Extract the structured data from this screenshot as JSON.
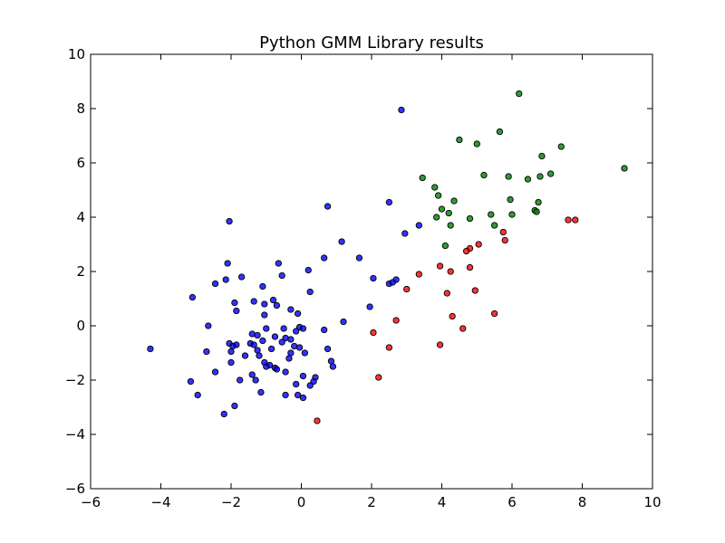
{
  "chart_data": {
    "type": "scatter",
    "title": "Python GMM Library results",
    "xlabel": "",
    "ylabel": "",
    "xlim": [
      -6,
      10
    ],
    "ylim": [
      -6,
      10
    ],
    "xticks": [
      -6,
      -4,
      -2,
      0,
      2,
      4,
      6,
      8,
      10
    ],
    "yticks": [
      -6,
      -4,
      -2,
      0,
      2,
      4,
      6,
      8,
      10
    ],
    "xtick_labels": [
      "−6",
      "−4",
      "−2",
      "0",
      "2",
      "4",
      "6",
      "8",
      "10"
    ],
    "ytick_labels": [
      "−6",
      "−4",
      "−2",
      "0",
      "2",
      "4",
      "6",
      "8",
      "10"
    ],
    "grid": false,
    "legend": false,
    "series": [
      {
        "color": "#0000ff",
        "points": [
          [
            2.85,
            7.95
          ],
          [
            -2.05,
            3.85
          ],
          [
            0.75,
            4.4
          ],
          [
            2.5,
            4.55
          ],
          [
            3.35,
            3.7
          ],
          [
            2.95,
            3.4
          ],
          [
            1.15,
            3.1
          ],
          [
            1.65,
            2.5
          ],
          [
            0.65,
            2.5
          ],
          [
            -2.1,
            2.3
          ],
          [
            -0.65,
            2.3
          ],
          [
            0.2,
            2.05
          ],
          [
            -1.7,
            1.8
          ],
          [
            -0.55,
            1.85
          ],
          [
            -2.15,
            1.7
          ],
          [
            -2.45,
            1.55
          ],
          [
            -1.1,
            1.45
          ],
          [
            2.05,
            1.75
          ],
          [
            2.5,
            1.55
          ],
          [
            2.7,
            1.7
          ],
          [
            2.6,
            1.6
          ],
          [
            0.25,
            1.25
          ],
          [
            -3.1,
            1.05
          ],
          [
            -1.35,
            0.9
          ],
          [
            -0.8,
            0.95
          ],
          [
            -1.9,
            0.85
          ],
          [
            -1.05,
            0.8
          ],
          [
            -0.7,
            0.75
          ],
          [
            -0.3,
            0.6
          ],
          [
            -0.1,
            0.45
          ],
          [
            -1.85,
            0.55
          ],
          [
            -1.05,
            0.4
          ],
          [
            1.95,
            0.7
          ],
          [
            1.2,
            0.15
          ],
          [
            -2.65,
            0.0
          ],
          [
            -0.05,
            -0.05
          ],
          [
            0.05,
            -0.1
          ],
          [
            -1.0,
            -0.1
          ],
          [
            -0.5,
            -0.1
          ],
          [
            -0.15,
            -0.2
          ],
          [
            0.65,
            -0.15
          ],
          [
            -1.4,
            -0.3
          ],
          [
            -1.25,
            -0.35
          ],
          [
            -0.75,
            -0.4
          ],
          [
            -0.45,
            -0.45
          ],
          [
            -0.3,
            -0.5
          ],
          [
            -1.1,
            -0.55
          ],
          [
            -0.55,
            -0.6
          ],
          [
            -1.45,
            -0.65
          ],
          [
            -1.35,
            -0.7
          ],
          [
            -2.05,
            -0.65
          ],
          [
            -1.85,
            -0.7
          ],
          [
            -1.95,
            -0.75
          ],
          [
            -0.2,
            -0.75
          ],
          [
            -0.05,
            -0.8
          ],
          [
            -0.85,
            -0.85
          ],
          [
            -1.25,
            -0.9
          ],
          [
            -2.0,
            -0.95
          ],
          [
            -2.7,
            -0.95
          ],
          [
            0.75,
            -0.85
          ],
          [
            -4.3,
            -0.85
          ],
          [
            0.1,
            -1.0
          ],
          [
            -0.3,
            -1.0
          ],
          [
            -1.6,
            -1.1
          ],
          [
            -1.2,
            -1.1
          ],
          [
            -0.35,
            -1.2
          ],
          [
            0.85,
            -1.3
          ],
          [
            -2.0,
            -1.35
          ],
          [
            -1.05,
            -1.35
          ],
          [
            -0.9,
            -1.45
          ],
          [
            -0.75,
            -1.55
          ],
          [
            -1.0,
            -1.5
          ],
          [
            -0.7,
            -1.6
          ],
          [
            0.9,
            -1.5
          ],
          [
            -2.45,
            -1.7
          ],
          [
            -1.4,
            -1.8
          ],
          [
            -0.45,
            -1.7
          ],
          [
            0.4,
            -1.9
          ],
          [
            0.05,
            -1.85
          ],
          [
            -1.75,
            -2.0
          ],
          [
            -1.3,
            -2.0
          ],
          [
            0.35,
            -2.05
          ],
          [
            -3.15,
            -2.05
          ],
          [
            -0.15,
            -2.15
          ],
          [
            0.25,
            -2.2
          ],
          [
            -1.15,
            -2.45
          ],
          [
            -2.95,
            -2.55
          ],
          [
            -0.45,
            -2.55
          ],
          [
            -0.1,
            -2.55
          ],
          [
            0.05,
            -2.65
          ],
          [
            -1.9,
            -2.95
          ],
          [
            -2.2,
            -3.25
          ]
        ]
      },
      {
        "color": "#008000",
        "points": [
          [
            6.2,
            8.55
          ],
          [
            5.65,
            7.15
          ],
          [
            4.5,
            6.85
          ],
          [
            5.0,
            6.7
          ],
          [
            7.4,
            6.6
          ],
          [
            6.85,
            6.25
          ],
          [
            9.2,
            5.8
          ],
          [
            7.1,
            5.6
          ],
          [
            5.2,
            5.55
          ],
          [
            6.8,
            5.5
          ],
          [
            3.45,
            5.45
          ],
          [
            5.9,
            5.5
          ],
          [
            6.45,
            5.4
          ],
          [
            3.8,
            5.1
          ],
          [
            3.9,
            4.8
          ],
          [
            5.95,
            4.65
          ],
          [
            4.35,
            4.6
          ],
          [
            6.75,
            4.55
          ],
          [
            4.0,
            4.3
          ],
          [
            6.65,
            4.25
          ],
          [
            6.7,
            4.2
          ],
          [
            4.2,
            4.15
          ],
          [
            6.0,
            4.1
          ],
          [
            5.4,
            4.1
          ],
          [
            3.85,
            4.0
          ],
          [
            4.8,
            3.95
          ],
          [
            5.5,
            3.7
          ],
          [
            4.25,
            3.7
          ],
          [
            4.1,
            2.95
          ]
        ]
      },
      {
        "color": "#ff0000",
        "points": [
          [
            7.6,
            3.9
          ],
          [
            7.8,
            3.9
          ],
          [
            5.75,
            3.45
          ],
          [
            5.8,
            3.15
          ],
          [
            5.05,
            3.0
          ],
          [
            4.8,
            2.85
          ],
          [
            4.7,
            2.75
          ],
          [
            3.95,
            2.2
          ],
          [
            4.8,
            2.15
          ],
          [
            4.25,
            2.0
          ],
          [
            3.35,
            1.9
          ],
          [
            3.0,
            1.35
          ],
          [
            4.95,
            1.3
          ],
          [
            4.15,
            1.2
          ],
          [
            5.5,
            0.45
          ],
          [
            4.3,
            0.35
          ],
          [
            2.7,
            0.2
          ],
          [
            4.6,
            -0.1
          ],
          [
            2.05,
            -0.25
          ],
          [
            3.95,
            -0.7
          ],
          [
            2.5,
            -0.8
          ],
          [
            2.2,
            -1.9
          ],
          [
            0.45,
            -3.5
          ]
        ]
      }
    ]
  }
}
